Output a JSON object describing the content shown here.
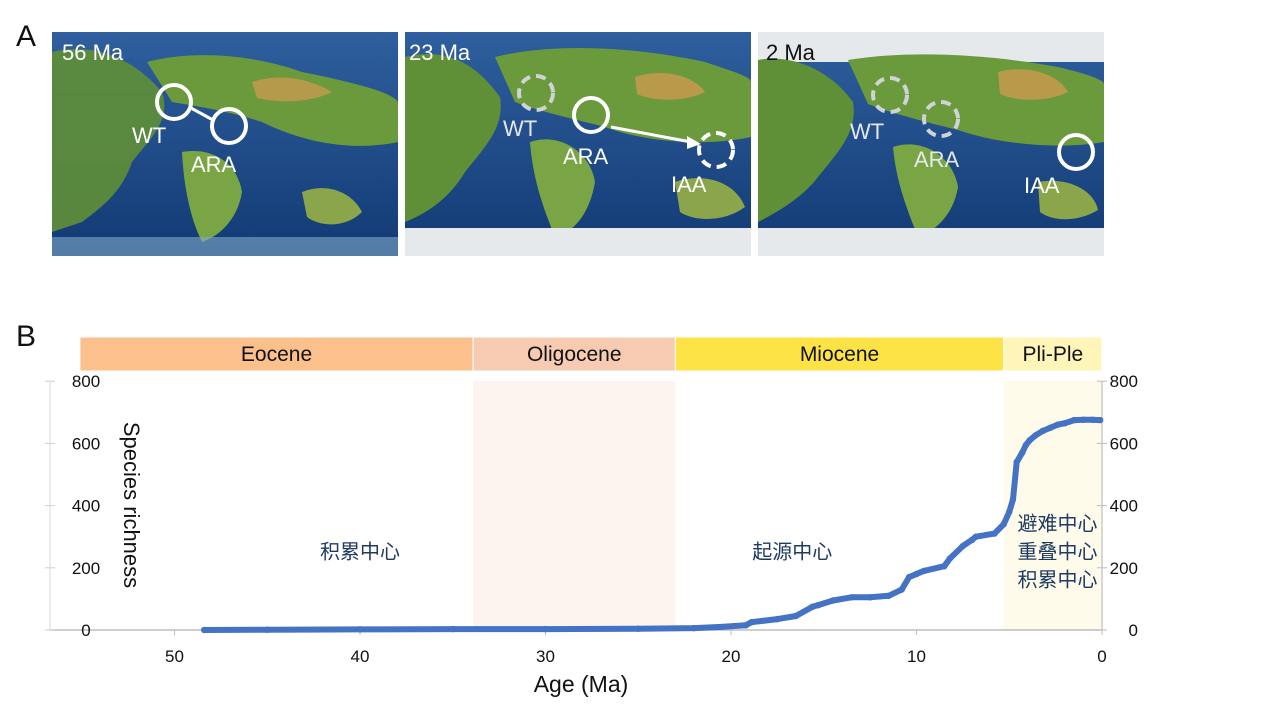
{
  "panels": {
    "a": "A",
    "b": "B"
  },
  "maps": [
    {
      "age": "56 Ma",
      "labels": [
        "WT",
        "ARA"
      ]
    },
    {
      "age": "23 Ma",
      "labels": [
        "WT",
        "ARA",
        "IAA"
      ]
    },
    {
      "age": "2 Ma",
      "labels": [
        "WT",
        "ARA",
        "IAA"
      ]
    }
  ],
  "colors": {
    "ocean": "#123a74",
    "ocean_mid": "#2f5f9e",
    "shelf": "#7ea8c8",
    "land": "#6a9a3c",
    "land_high": "#c79a4e",
    "ice": "#e6e9ec",
    "series": "#4472c4",
    "eocene": "#fbc08b",
    "oligocene": "#f6cbb2",
    "miocene": "#fde345",
    "pliple": "#fff5b8"
  },
  "chart_data": {
    "type": "line",
    "xlabel": "Age (Ma)",
    "ylabel": "Species richness",
    "xlim": [
      55,
      0
    ],
    "ylim": [
      0,
      800
    ],
    "x_ticks": [
      50,
      40,
      30,
      20,
      10,
      0
    ],
    "y_ticks": [
      0,
      200,
      400,
      600,
      800
    ],
    "epochs": [
      {
        "name": "Eocene",
        "from": 56,
        "to": 33.9
      },
      {
        "name": "Oligocene",
        "from": 33.9,
        "to": 23
      },
      {
        "name": "Miocene",
        "from": 23,
        "to": 5.3
      },
      {
        "name": "Pli-Ple",
        "from": 5.3,
        "to": 0
      }
    ],
    "annotations": [
      {
        "text": "积累中心",
        "x": 40,
        "y": 230
      },
      {
        "text": "起源中心",
        "x": 16.7,
        "y": 230
      },
      {
        "text": "避难中心",
        "x": 2.4,
        "y": 320
      },
      {
        "text": "重叠中心",
        "x": 2.4,
        "y": 230
      },
      {
        "text": "积累中心",
        "x": 2.4,
        "y": 140
      }
    ],
    "series": [
      {
        "x": [
          48.4,
          45,
          40,
          35,
          30,
          25,
          22,
          20.5,
          19.2,
          18.9,
          17.5,
          16.5,
          15.6,
          15.3,
          14.5,
          13.5,
          12.5,
          11.5,
          10.8,
          10.4,
          10.0,
          9.6,
          8.5,
          8.2,
          7.5,
          7.0,
          6.8,
          5.8,
          5.3,
          5.0,
          4.8,
          4.6,
          4.3,
          4.1,
          3.9,
          3.6,
          3.2,
          2.8,
          2.4,
          2.0,
          1.5,
          1.0,
          0.5,
          0.1
        ],
        "y": [
          0,
          1,
          2,
          3,
          3,
          4,
          6,
          10,
          15,
          25,
          35,
          45,
          75,
          80,
          95,
          105,
          105,
          110,
          130,
          170,
          180,
          190,
          205,
          230,
          270,
          290,
          300,
          310,
          340,
          380,
          420,
          540,
          570,
          595,
          610,
          625,
          640,
          650,
          660,
          665,
          675,
          676,
          676,
          675
        ]
      }
    ]
  }
}
